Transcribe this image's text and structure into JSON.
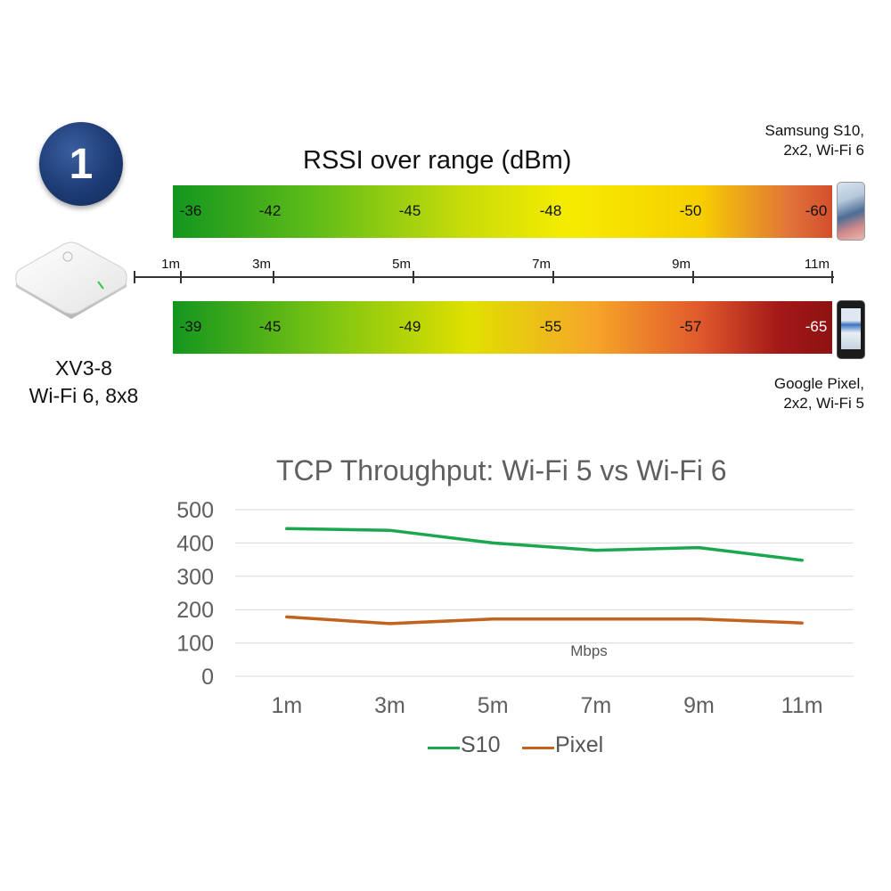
{
  "badge": "1",
  "rssi": {
    "title": "RSSI over range (dBm)",
    "axis_labels": [
      "1m",
      "3m",
      "5m",
      "7m",
      "9m",
      "11m"
    ],
    "s10_values": [
      "-36",
      "-42",
      "-45",
      "-48",
      "-50",
      "-60"
    ],
    "pixel_values": [
      "-39",
      "-45",
      "-49",
      "-55",
      "-57",
      "-65"
    ]
  },
  "devices": {
    "top_line1": "Samsung S10,",
    "top_line2": "2x2, Wi-Fi 6",
    "bottom_line1": "Google Pixel,",
    "bottom_line2": "2x2, Wi-Fi 5"
  },
  "ap": {
    "line1": "XV3-8",
    "line2": "Wi-Fi 6, 8x8"
  },
  "colors": {
    "s10": "#1ca64f",
    "pixel": "#c2621f",
    "grid": "#d9d9d9",
    "tick_text": "#5f5f5f"
  },
  "chart_data": {
    "type": "line",
    "title": "TCP Throughput:  Wi-Fi 5 vs Wi-Fi 6",
    "categories": [
      "1m",
      "3m",
      "5m",
      "7m",
      "9m",
      "11m"
    ],
    "series": [
      {
        "name": "S10",
        "values": [
          443,
          438,
          400,
          378,
          386,
          348
        ]
      },
      {
        "name": "Pixel",
        "values": [
          178,
          158,
          172,
          172,
          172,
          160
        ]
      }
    ],
    "ylim": [
      0,
      500
    ],
    "yticks": [
      "0",
      "100",
      "200",
      "300",
      "400",
      "500"
    ],
    "annotation": "Mbps",
    "grid": true,
    "legend": "bottom"
  }
}
